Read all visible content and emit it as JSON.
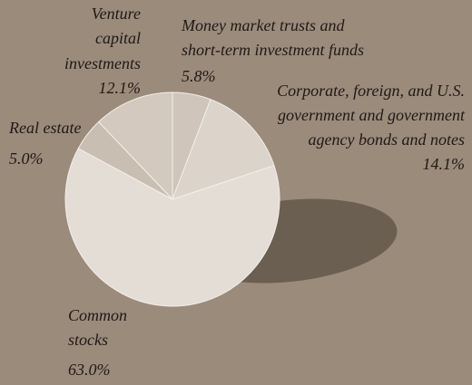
{
  "chart_data": {
    "type": "pie",
    "categories": [
      [
        "Money market trusts and",
        "short-term investment funds"
      ],
      [
        "Corporate, foreign, and U.S.",
        "government and  government",
        "agency bonds and notes"
      ],
      [
        "Common",
        "stocks"
      ],
      [
        "Real estate"
      ],
      [
        "Venture",
        "capital",
        "investments"
      ]
    ],
    "values": [
      5.8,
      14.1,
      63.0,
      5.0,
      12.1
    ],
    "value_labels": [
      "5.8%",
      "14.1%",
      "63.0%",
      "5.0%",
      "12.1%"
    ],
    "colors": [
      "#cfc5ba",
      "#dcd3ca",
      "#e4ddd6",
      "#c9beb2",
      "#d3c9be"
    ]
  }
}
